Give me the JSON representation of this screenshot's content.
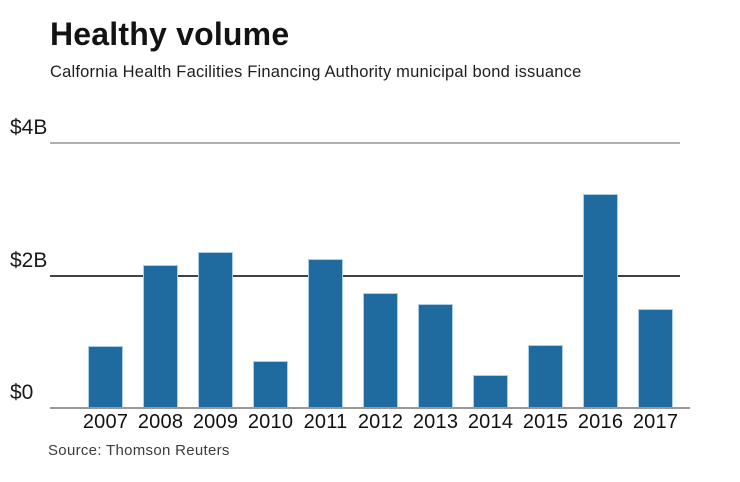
{
  "header": {
    "title": "Healthy volume",
    "subtitle": "Calfornia Health Facilities Financing Authority municipal bond issuance"
  },
  "footer": {
    "source": "Source: Thomson Reuters"
  },
  "chart_data": {
    "type": "bar",
    "title": "Healthy volume",
    "subtitle": "Calfornia Health Facilities Financing Authority municipal bond issuance",
    "categories": [
      "2007",
      "2008",
      "2009",
      "2010",
      "2011",
      "2012",
      "2013",
      "2014",
      "2015",
      "2016",
      "2017"
    ],
    "values": [
      0.92,
      2.15,
      2.34,
      0.69,
      2.24,
      1.72,
      1.56,
      0.48,
      0.94,
      3.22,
      1.48
    ],
    "values_unit": "$B",
    "ylim": [
      0,
      4
    ],
    "yticks": [
      {
        "label": "$4B",
        "value": 4,
        "line_color": "#b0b0b0"
      },
      {
        "label": "$2B",
        "value": 2,
        "line_color": "#424242"
      },
      {
        "label": "$0",
        "value": 0,
        "line_color": "#989898"
      }
    ],
    "grid": "horizontal",
    "legend": null,
    "source": "Source: Thomson Reuters",
    "colors": {
      "bar": "#1f6ba0",
      "bar_edge": "#abd0e5",
      "text": "#131313"
    }
  }
}
